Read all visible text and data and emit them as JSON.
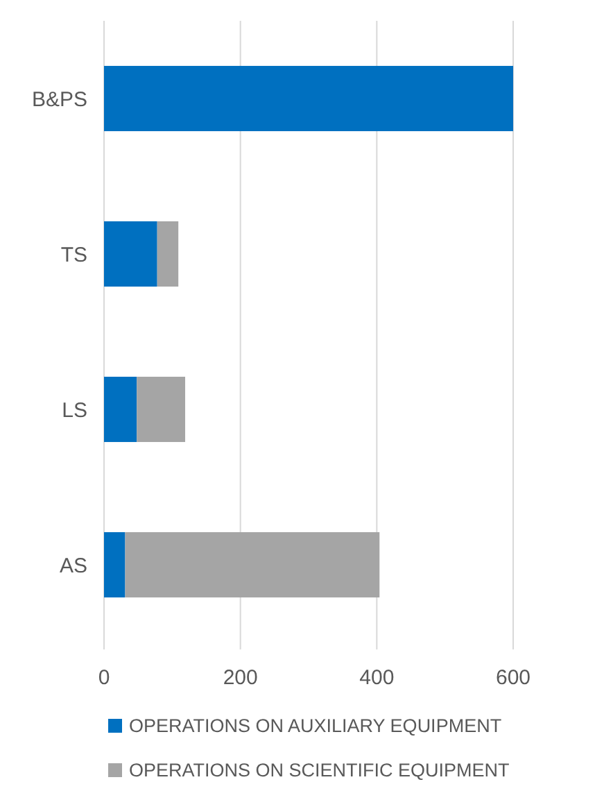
{
  "chart_data": {
    "type": "bar",
    "orientation": "horizontal",
    "stacked": true,
    "categories": [
      "B&PS",
      "TS",
      "LS",
      "AS"
    ],
    "series": [
      {
        "name": "OPERATIONS ON AUXILIARY EQUIPMENT",
        "color": "#0070c0",
        "values": [
          600,
          78,
          48,
          31
        ]
      },
      {
        "name": "OPERATIONS ON SCIENTIFIC EQUIPMENT",
        "color": "#a5a5a5",
        "values": [
          0,
          31,
          71,
          373
        ]
      }
    ],
    "xlim": [
      0,
      600
    ],
    "xticks": [
      0,
      200,
      400,
      600
    ],
    "grid": "x",
    "legend": "bottom"
  }
}
